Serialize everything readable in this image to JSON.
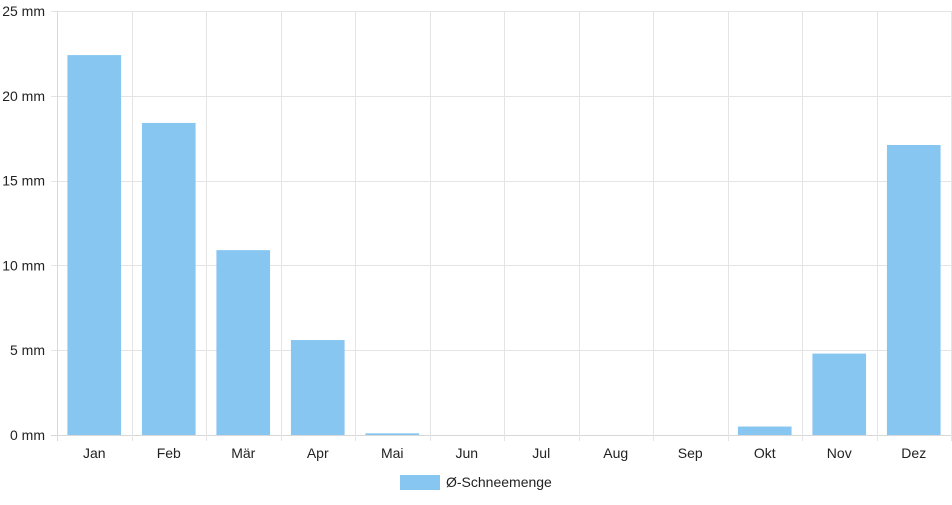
{
  "chart_data": {
    "type": "bar",
    "categories": [
      "Jan",
      "Feb",
      "Mär",
      "Apr",
      "Mai",
      "Jun",
      "Jul",
      "Aug",
      "Sep",
      "Okt",
      "Nov",
      "Dez"
    ],
    "series": [
      {
        "name": "Ø-Schneemenge",
        "values": [
          22.4,
          18.4,
          10.9,
          5.6,
          0.1,
          0,
          0,
          0,
          0,
          0.5,
          4.8,
          17.1
        ],
        "color": "#87c6f1"
      }
    ],
    "y_ticks": [
      0,
      5,
      10,
      15,
      20,
      25
    ],
    "y_unit": "mm",
    "ylim": [
      0,
      25
    ],
    "grid": true,
    "legend": {
      "position": "bottom-center",
      "label": "Ø-Schneemenge"
    }
  }
}
